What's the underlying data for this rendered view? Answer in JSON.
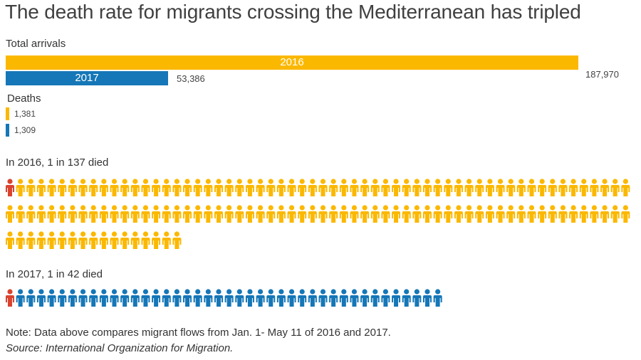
{
  "title": "The death rate for migrants crossing the Mediterranean has tripled",
  "arrivals": {
    "label": "Total arrivals",
    "bars": [
      {
        "year": "2016",
        "value": 187970,
        "value_text": "187,970",
        "color": "#FBB800"
      },
      {
        "year": "2017",
        "value": 53386,
        "value_text": "53,386",
        "color": "#1577B7"
      }
    ]
  },
  "deaths": {
    "label": "Deaths",
    "items": [
      {
        "year": "2016",
        "value": 1381,
        "value_text": "1,381",
        "color": "#FBB800"
      },
      {
        "year": "2017",
        "value": 1309,
        "value_text": "1,309",
        "color": "#1577B7"
      }
    ]
  },
  "rate_2016": {
    "label": "In 2016, 1 in 137 died",
    "total": 137,
    "died": 1,
    "color": "#FBB800",
    "died_color": "#D9432F"
  },
  "rate_2017": {
    "label": "In 2017, 1 in 42 died",
    "total": 42,
    "died": 1,
    "color": "#1577B7",
    "died_color": "#D9432F"
  },
  "note": "Note: Data above compares migrant flows from Jan. 1- May 11 of 2016 and 2017.",
  "source": "Source: International Organization for Migration.",
  "chart_data": [
    {
      "type": "bar",
      "title": "Total arrivals",
      "categories": [
        "2016",
        "2017"
      ],
      "values": [
        187970,
        53386
      ]
    },
    {
      "type": "bar",
      "title": "Deaths",
      "categories": [
        "2016",
        "2017"
      ],
      "values": [
        1381,
        1309
      ]
    }
  ]
}
